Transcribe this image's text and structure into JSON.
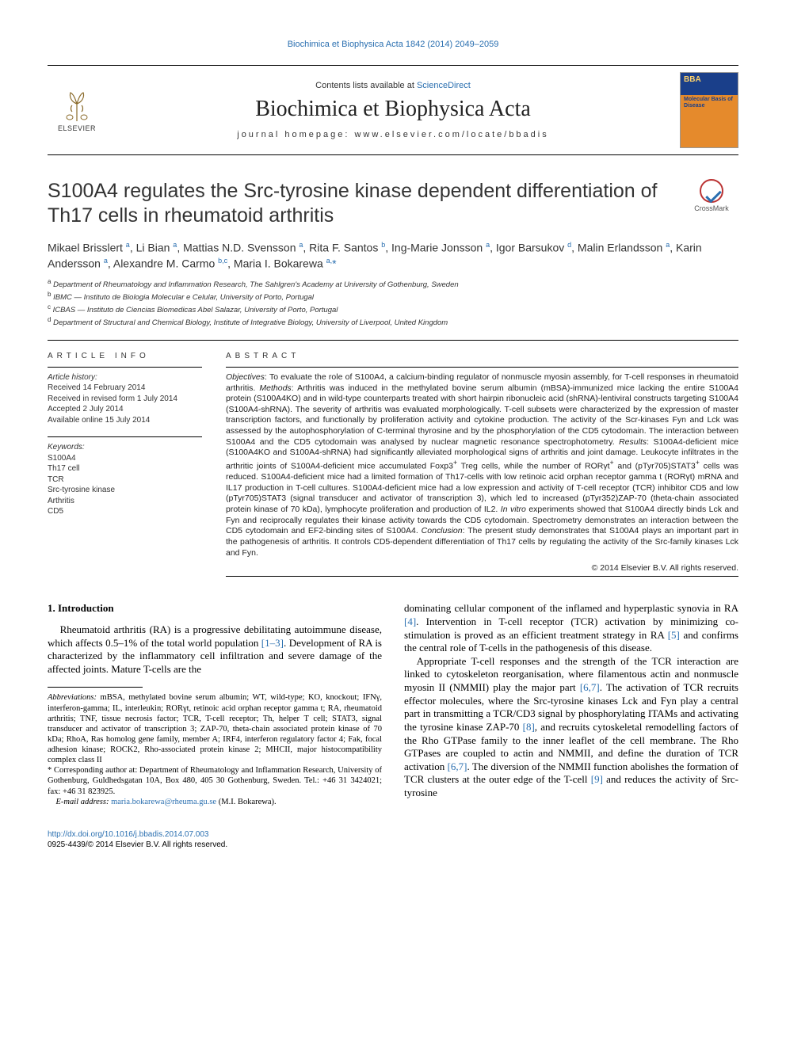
{
  "running_head": "Biochimica et Biophysica Acta 1842 (2014) 2049–2059",
  "banner": {
    "contents_prefix": "Contents lists available at ",
    "contents_link": "ScienceDirect",
    "journal_name": "Biochimica et Biophysica Acta",
    "homepage_prefix": "journal homepage: ",
    "homepage_url": "www.elsevier.com/locate/bbadis",
    "publisher": "ELSEVIER",
    "cover_top": "BBA",
    "cover_sub": "Molecular\nBasis of\nDisease"
  },
  "crossmark_label": "CrossMark",
  "title": "S100A4 regulates the Src-tyrosine kinase dependent differentiation of Th17 cells in rheumatoid arthritis",
  "authors_html": "Mikael Brisslert <sup>a</sup>, Li Bian <sup>a</sup>, Mattias N.D. Svensson <sup>a</sup>, Rita F. Santos <sup>b</sup>, Ing-Marie Jonsson <sup>a</sup>, Igor Barsukov <sup>d</sup>, Malin Erlandsson <sup>a</sup>, Karin Andersson <sup>a</sup>, Alexandre M. Carmo <sup>b,c</sup>, Maria I. Bokarewa <sup>a,</sup><span class='star'>*</span>",
  "affiliations": [
    {
      "key": "a",
      "text": "Department of Rheumatology and Inflammation Research, The Sahlgren's Academy at University of Gothenburg, Sweden"
    },
    {
      "key": "b",
      "text": "IBMC — Instituto de Biologia Molecular e Celular, University of Porto, Portugal"
    },
    {
      "key": "c",
      "text": "ICBAS — Instituto de Ciencias Biomedicas Abel Salazar, University of Porto, Portugal"
    },
    {
      "key": "d",
      "text": "Department of Structural and Chemical Biology, Institute of Integrative Biology, University of Liverpool, United Kingdom"
    }
  ],
  "article_info": {
    "heading": "ARTICLE INFO",
    "history_label": "Article history:",
    "history": [
      "Received 14 February 2014",
      "Received in revised form 1 July 2014",
      "Accepted 2 July 2014",
      "Available online 15 July 2014"
    ],
    "keywords_label": "Keywords:",
    "keywords": [
      "S100A4",
      "Th17 cell",
      "TCR",
      "Src-tyrosine kinase",
      "Arthritis",
      "CD5"
    ]
  },
  "abstract": {
    "heading": "ABSTRACT",
    "body_html": "<i>Objectives</i>: To evaluate the role of S100A4, a calcium-binding regulator of nonmuscle myosin assembly, for T-cell responses in rheumatoid arthritis. <i>Methods</i>: Arthritis was induced in the methylated bovine serum albumin (mBSA)-immunized mice lacking the entire S100A4 protein (S100A4KO) and in wild-type counterparts treated with short hairpin ribonucleic acid (shRNA)-lentiviral constructs targeting S100A4 (S100A4-shRNA). The severity of arthritis was evaluated morphologically. T-cell subsets were characterized by the expression of master transcription factors, and functionally by proliferation activity and cytokine production. The activity of the Scr-kinases Fyn and Lck was assessed by the autophosphorylation of C-terminal thyrosine and by the phosphorylation of the CD5 cytodomain. The interaction between S100A4 and the CD5 cytodomain was analysed by nuclear magnetic resonance spectrophotometry. <i>Results</i>: S100A4-deficient mice (S100A4KO and S100A4-shRNA) had significantly alleviated morphological signs of arthritis and joint damage. Leukocyte infiltrates in the arthritic joints of S100A4-deficient mice accumulated Foxp3<sup>+</sup> Treg cells, while the number of RORγt<sup>+</sup> and (pTyr705)STAT3<sup>+</sup> cells was reduced. S100A4-deficient mice had a limited formation of Th17-cells with low retinoic acid orphan receptor gamma t (RORγt) mRNA and IL17 production in T-cell cultures. S100A4-deficient mice had a low expression and activity of T-cell receptor (TCR) inhibitor CD5 and low (pTyr705)STAT3 (signal transducer and activator of transcription 3), which led to increased (pTyr352)ZAP-70 (theta-chain associated protein kinase of 70 kDa), lymphocyte proliferation and production of IL2. <i>In vitro</i> experiments showed that S100A4 directly binds Lck and Fyn and reciprocally regulates their kinase activity towards the CD5 cytodomain. Spectrometry demonstrates an interaction between the CD5 cytodomain and EF2-binding sites of S100A4. <i>Conclusion</i>: The present study demonstrates that S100A4 plays an important part in the pathogenesis of arthritis. It controls CD5-dependent differentiation of Th17 cells by regulating the activity of the Src-family kinases Lck and Fyn.",
    "copyright": "© 2014 Elsevier B.V. All rights reserved."
  },
  "body": {
    "section_heading": "1. Introduction",
    "p1_html": "Rheumatoid arthritis (RA) is a progressive debilitating autoimmune disease, which affects 0.5–1% of the total world population <span class='ref-link'>[1–3]</span>. Development of RA is characterized by the inflammatory cell infiltration and severe damage of the affected joints. Mature T-cells are the",
    "p2_html": "dominating cellular component of the inflamed and hyperplastic synovia in RA <span class='ref-link'>[4]</span>. Intervention in T-cell receptor (TCR) activation by minimizing co-stimulation is proved as an efficient treatment strategy in RA <span class='ref-link'>[5]</span> and confirms the central role of T-cells in the pathogenesis of this disease.",
    "p3_html": "Appropriate T-cell responses and the strength of the TCR interaction are linked to cytoskeleton reorganisation, where filamentous actin and nonmuscle myosin II (NMMII) play the major part <span class='ref-link'>[6,7]</span>. The activation of TCR recruits effector molecules, where the Src-tyrosine kinases Lck and Fyn play a central part in transmitting a TCR/CD3 signal by phosphorylating ITAMs and activating the tyrosine kinase ZAP-70 <span class='ref-link'>[8]</span>, and recruits cytoskeletal remodelling factors of the Rho GTPase family to the inner leaflet of the cell membrane. The Rho GTPases are coupled to actin and NMMII, and define the duration of TCR activation <span class='ref-link'>[6,7]</span>. The diversion of the NMMII function abolishes the formation of TCR clusters at the outer edge of the T-cell <span class='ref-link'>[9]</span> and reduces the activity of Src-tyrosine"
  },
  "footnotes": {
    "abbrev_label": "Abbreviations:",
    "abbrev_text": " mBSA, methylated bovine serum albumin; WT, wild-type; KO, knockout; IFNγ, interferon-gamma; IL, interleukin; RORγt, retinoic acid orphan receptor gamma t; RA, rheumatoid arthritis; TNF, tissue necrosis factor; TCR, T-cell receptor; Th, helper T cell; STAT3, signal transducer and activator of transcription 3; ZAP-70, theta-chain associated protein kinase of 70 kDa; RhoA, Ras homolog gene family, member A; IRF4, interferon regulatory factor 4; Fak, focal adhesion kinase; ROCK2, Rho-associated protein kinase 2; MHCII, major histocompatibility complex class II",
    "corr_marker": "*",
    "corr_text": " Corresponding author at: Department of Rheumatology and Inflammation Research, University of Gothenburg, Guldhedsgatan 10A, Box 480, 405 30 Gothenburg, Sweden. Tel.: +46 31 3424021; fax: +46 31 823925.",
    "email_label": "E-mail address:",
    "email": "maria.bokarewa@rheuma.gu.se",
    "email_person": " (M.I. Bokarewa)."
  },
  "footer": {
    "doi": "http://dx.doi.org/10.1016/j.bbadis.2014.07.003",
    "issn_line": "0925-4439/© 2014 Elsevier B.V. All rights reserved."
  },
  "colors": {
    "link": "#2a6fb0",
    "text": "#000000",
    "cover_blue": "#1a3f8a",
    "cover_orange": "#e58a2c"
  }
}
